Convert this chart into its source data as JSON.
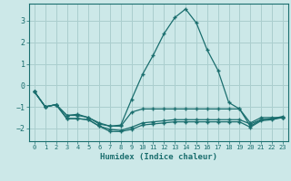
{
  "xlabel": "Humidex (Indice chaleur)",
  "bg_color": "#cce8e8",
  "grid_color": "#aacece",
  "line_color": "#1a6e6e",
  "xlim": [
    -0.5,
    23.5
  ],
  "ylim": [
    -2.6,
    3.8
  ],
  "yticks": [
    -2,
    -1,
    0,
    1,
    2,
    3
  ],
  "xticks": [
    0,
    1,
    2,
    3,
    4,
    5,
    6,
    7,
    8,
    9,
    10,
    11,
    12,
    13,
    14,
    15,
    16,
    17,
    18,
    19,
    20,
    21,
    22,
    23
  ],
  "line1_x": [
    0,
    1,
    2,
    3,
    4,
    5,
    6,
    7,
    8,
    9,
    10,
    11,
    12,
    13,
    14,
    15,
    16,
    17,
    18,
    19,
    20,
    21,
    22,
    23
  ],
  "line1_y": [
    -0.3,
    -1.0,
    -0.9,
    -1.4,
    -1.35,
    -1.5,
    -1.75,
    -1.9,
    -1.85,
    -0.65,
    0.5,
    1.4,
    2.4,
    3.15,
    3.55,
    2.9,
    1.65,
    0.7,
    -0.8,
    -1.1,
    -1.9,
    -1.6,
    -1.55,
    -1.5
  ],
  "line2_x": [
    0,
    1,
    2,
    3,
    4,
    5,
    6,
    7,
    8,
    9,
    10,
    11,
    12,
    13,
    14,
    15,
    16,
    17,
    18,
    19,
    20,
    21,
    22,
    23
  ],
  "line2_y": [
    -0.3,
    -1.0,
    -0.9,
    -1.4,
    -1.4,
    -1.5,
    -1.8,
    -1.9,
    -1.9,
    -1.25,
    -1.1,
    -1.1,
    -1.1,
    -1.1,
    -1.1,
    -1.1,
    -1.1,
    -1.1,
    -1.1,
    -1.1,
    -1.75,
    -1.5,
    -1.5,
    -1.5
  ],
  "line3_x": [
    0,
    1,
    2,
    3,
    4,
    5,
    6,
    7,
    8,
    9,
    10,
    11,
    12,
    13,
    14,
    15,
    16,
    17,
    18,
    19,
    20,
    21,
    22,
    23
  ],
  "line3_y": [
    -0.3,
    -1.0,
    -0.9,
    -1.55,
    -1.55,
    -1.6,
    -1.9,
    -2.05,
    -2.1,
    -1.95,
    -1.75,
    -1.7,
    -1.65,
    -1.6,
    -1.6,
    -1.6,
    -1.6,
    -1.6,
    -1.6,
    -1.6,
    -1.8,
    -1.6,
    -1.55,
    -1.45
  ],
  "line4_x": [
    0,
    1,
    2,
    3,
    4,
    5,
    6,
    7,
    8,
    9,
    10,
    11,
    12,
    13,
    14,
    15,
    16,
    17,
    18,
    19,
    20,
    21,
    22,
    23
  ],
  "line4_y": [
    -0.3,
    -1.0,
    -0.9,
    -1.55,
    -1.55,
    -1.6,
    -1.9,
    -2.15,
    -2.15,
    -2.05,
    -1.85,
    -1.8,
    -1.75,
    -1.7,
    -1.7,
    -1.7,
    -1.7,
    -1.7,
    -1.7,
    -1.7,
    -1.95,
    -1.65,
    -1.6,
    -1.5
  ]
}
